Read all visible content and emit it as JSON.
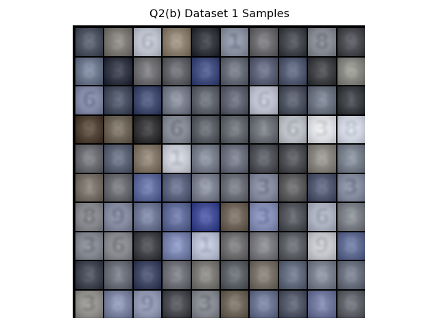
{
  "title": "Q2(b) Dataset 1 Samples",
  "grid": {
    "rows": 10,
    "cols": 10
  },
  "tiles": [
    [
      "#4a5060",
      "#7e7a74",
      "#c9cedb",
      "#8e816f",
      "#2e3038",
      "#9098aa",
      "#6a6a6e",
      "#3e4248",
      "#8c909a",
      "#44464c"
    ],
    [
      "#6c7890",
      "#2c3040",
      "#6e6e72",
      "#5e6066",
      "#3c4a80",
      "#646a78",
      "#5a6078",
      "#505a74",
      "#3a3c40",
      "#8a8a84"
    ],
    [
      "#8890b0",
      "#444c60",
      "#3c4870",
      "#7a8090",
      "#5c626c",
      "#5c6070",
      "#c8ccdc",
      "#4a5060",
      "#6c7484",
      "#363a40"
    ],
    [
      "#4e3e30",
      "#6e6456",
      "#2e2e30",
      "#8a909c",
      "#585c64",
      "#62666e",
      "#6c7078",
      "#c6cad2",
      "#eceef4",
      "#dfe4f2"
    ],
    [
      "#6a6c72",
      "#5a6276",
      "#847868",
      "#d4d8e2",
      "#7a8090",
      "#6c7080",
      "#4e5058",
      "#484a50",
      "#8a8680",
      "#7a8290"
    ],
    [
      "#787068",
      "#686a70",
      "#5c6aa0",
      "#5a6280",
      "#7e8494",
      "#6a6e78",
      "#8a90a6",
      "#5a5a5c",
      "#4e5670",
      "#8a92a8"
    ],
    [
      "#8c8e94",
      "#8a90a8",
      "#6e7898",
      "#5e6a9c",
      "#3c4898",
      "#6e6256",
      "#8a94c0",
      "#4e5258",
      "#b6bccc",
      "#7c8088"
    ],
    [
      "#8a8e98",
      "#8e9096",
      "#3c3e44",
      "#7a86b4",
      "#c4cae0",
      "#6e6e70",
      "#7a7c82",
      "#5a5e64",
      "#d2d4da",
      "#5e6a94"
    ],
    [
      "#3e4250",
      "#6a6e7a",
      "#3a4262",
      "#6e7078",
      "#7c7a76",
      "#5a5e66",
      "#787068",
      "#606a7e",
      "#7c8292",
      "#6a7080"
    ],
    [
      "#9a9894",
      "#7e88a8",
      "#98a0bc",
      "#44464c",
      "#8a8e96",
      "#6e6458",
      "#6a7494",
      "#4e5466",
      "#6e78a0",
      "#5e6068"
    ]
  ]
}
